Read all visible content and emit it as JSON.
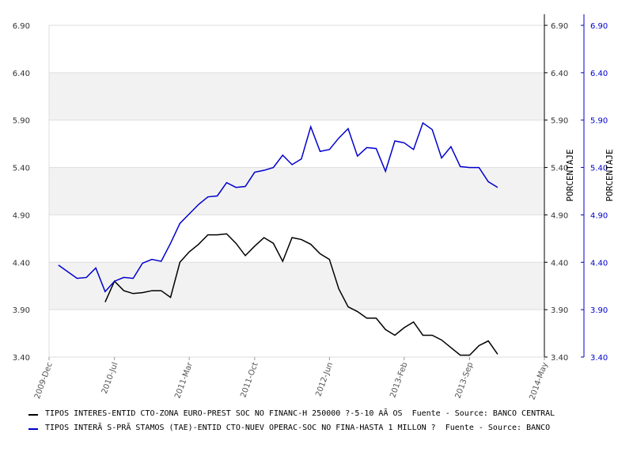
{
  "chart_data": {
    "type": "line",
    "x": [
      "2010-01",
      "2010-02",
      "2010-03",
      "2010-04",
      "2010-05",
      "2010-06",
      "2010-07",
      "2010-08",
      "2010-09",
      "2010-10",
      "2010-11",
      "2010-12",
      "2011-01",
      "2011-02",
      "2011-03",
      "2011-04",
      "2011-05",
      "2011-06",
      "2011-07",
      "2011-08",
      "2011-09",
      "2011-10",
      "2011-11",
      "2011-12",
      "2012-01",
      "2012-02",
      "2012-03",
      "2012-04",
      "2012-05",
      "2012-06",
      "2012-07",
      "2012-08",
      "2012-09",
      "2012-10",
      "2012-11",
      "2012-12",
      "2013-01",
      "2013-02",
      "2013-03",
      "2013-04",
      "2013-05",
      "2013-06",
      "2013-07",
      "2013-08",
      "2013-09",
      "2013-10",
      "2013-11",
      "2013-12"
    ],
    "series": [
      {
        "name": "TIPOS INTERES-ENTID CTO-ZONA EURO-PREST SOC NO FINANC-H 250000 ?-5-10 AÃ OS  Fuente - Source: BANCO CENTRAL",
        "color": "#000000",
        "values": [
          null,
          null,
          null,
          null,
          null,
          3.98,
          4.2,
          4.1,
          4.07,
          4.08,
          4.1,
          4.1,
          4.03,
          4.4,
          4.51,
          4.59,
          4.69,
          4.69,
          4.7,
          4.6,
          4.47,
          4.57,
          4.66,
          4.6,
          4.41,
          4.66,
          4.64,
          4.59,
          4.49,
          4.43,
          4.12,
          3.93,
          3.88,
          3.81,
          3.81,
          3.69,
          3.63,
          3.71,
          3.77,
          3.63,
          3.63,
          3.58,
          3.5,
          3.42,
          3.42,
          3.52,
          3.57,
          3.43
        ]
      },
      {
        "name": "TIPOS INTERÃ S-PRÃ STAMOS (TAE)-ENTID CTO-NUEV OPERAC-SOC NO FINA-HASTA 1 MILLON ?  Fuente - Source: BANCO",
        "color": "#0000cc",
        "axis": "y2",
        "values": [
          4.37,
          4.3,
          4.23,
          4.24,
          4.34,
          4.09,
          4.2,
          4.24,
          4.23,
          4.39,
          4.43,
          4.41,
          4.6,
          4.81,
          4.91,
          5.01,
          5.09,
          5.1,
          5.24,
          5.19,
          5.2,
          5.35,
          5.37,
          5.4,
          5.53,
          5.43,
          5.49,
          5.83,
          5.57,
          5.59,
          5.71,
          5.81,
          5.52,
          5.61,
          5.6,
          5.36,
          5.68,
          5.66,
          5.59,
          5.87,
          5.8,
          5.5,
          5.62,
          5.41,
          5.4,
          5.4,
          5.25,
          5.19
        ]
      }
    ],
    "xlim": [
      "2009-12",
      "2014-05"
    ],
    "xticks": [
      {
        "value": "2009-12",
        "label": "2009-Dec"
      },
      {
        "value": "2010-07",
        "label": "2010-Jul"
      },
      {
        "value": "2011-03",
        "label": "2011-Mar"
      },
      {
        "value": "2011-10",
        "label": "2011-Oct"
      },
      {
        "value": "2012-06",
        "label": "2012-Jun"
      },
      {
        "value": "2013-02",
        "label": "2013-Feb"
      },
      {
        "value": "2013-09",
        "label": "2013-Sep"
      },
      {
        "value": "2014-05",
        "label": "2014-May"
      }
    ],
    "ylim": [
      3.4,
      6.9
    ],
    "yticks": [
      {
        "value": 3.4,
        "label": "3.40"
      },
      {
        "value": 3.9,
        "label": "3.90"
      },
      {
        "value": 4.4,
        "label": "4.40"
      },
      {
        "value": 4.9,
        "label": "4.90"
      },
      {
        "value": 5.4,
        "label": "5.40"
      },
      {
        "value": 5.9,
        "label": "5.90"
      },
      {
        "value": 6.4,
        "label": "6.40"
      },
      {
        "value": 6.9,
        "label": "6.90"
      }
    ],
    "ylabel": "PORCENTAJE",
    "y2lim": [
      3.4,
      6.9
    ],
    "y2ticks": [
      {
        "value": 3.4,
        "label": "3.40"
      },
      {
        "value": 3.9,
        "label": "3.90"
      },
      {
        "value": 4.4,
        "label": "4.40"
      },
      {
        "value": 4.9,
        "label": "4.90"
      },
      {
        "value": 5.4,
        "label": "5.40"
      },
      {
        "value": 5.9,
        "label": "5.90"
      },
      {
        "value": 6.4,
        "label": "6.40"
      },
      {
        "value": 6.9,
        "label": "6.90"
      }
    ],
    "y2label": "PORCENTAJE",
    "y2color": "#0000cc",
    "grid": true
  }
}
